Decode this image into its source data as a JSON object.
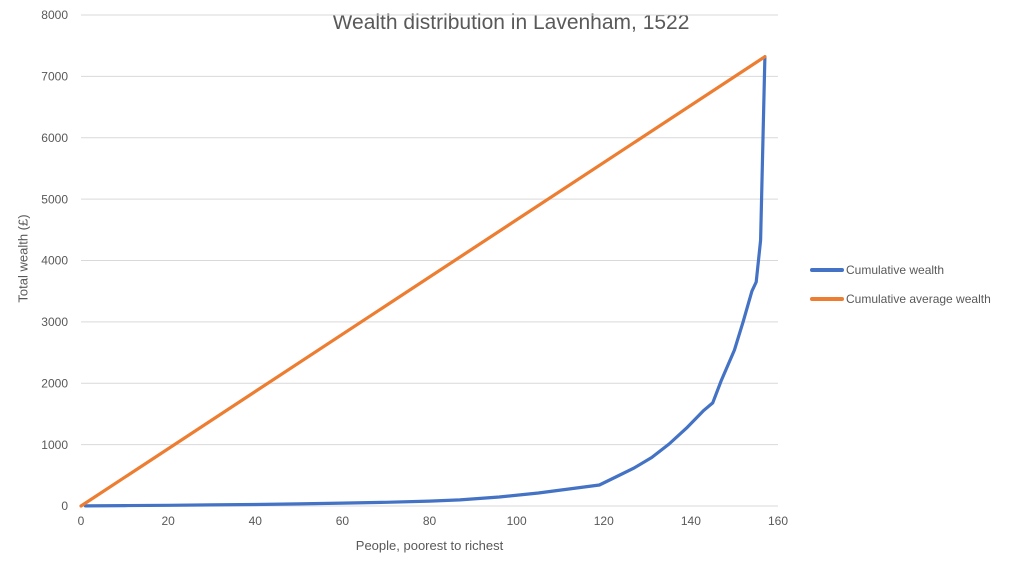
{
  "chart_data": {
    "type": "line",
    "title": "Wealth distribution in Lavenham, 1522",
    "xlabel": "People, poorest to richest",
    "ylabel": "Total wealth (£)",
    "xlim": [
      0,
      160
    ],
    "ylim": [
      0,
      8000
    ],
    "xticks": [
      0,
      20,
      40,
      60,
      80,
      100,
      120,
      140,
      160
    ],
    "yticks": [
      0,
      1000,
      2000,
      3000,
      4000,
      5000,
      6000,
      7000,
      8000
    ],
    "grid": "horizontal-only",
    "legend_position": "right",
    "colors": {
      "grid": "#D9D9D9",
      "axis_line": "#D9D9D9",
      "tick_label": "#595959",
      "title": "#595959",
      "axis_title": "#595959",
      "legend_text": "#595959",
      "background": "#FFFFFF"
    },
    "series": [
      {
        "name": "Cumulative wealth",
        "color": "#4472C4",
        "x": [
          1,
          10,
          20,
          30,
          40,
          50,
          60,
          70,
          80,
          87,
          96,
          105,
          112,
          119,
          123,
          127,
          131,
          135,
          139,
          143,
          145,
          147,
          150,
          152,
          154,
          155,
          156,
          157
        ],
        "y": [
          2,
          6,
          12,
          18,
          25,
          35,
          48,
          60,
          80,
          100,
          147,
          212,
          277,
          342,
          480,
          620,
          790,
          1010,
          1270,
          1560,
          1680,
          2050,
          2540,
          3000,
          3500,
          3650,
          4330,
          7320
        ]
      },
      {
        "name": "Cumulative average wealth",
        "color": "#ED7D31",
        "x": [
          0,
          157
        ],
        "y": [
          0,
          7320
        ]
      }
    ]
  }
}
